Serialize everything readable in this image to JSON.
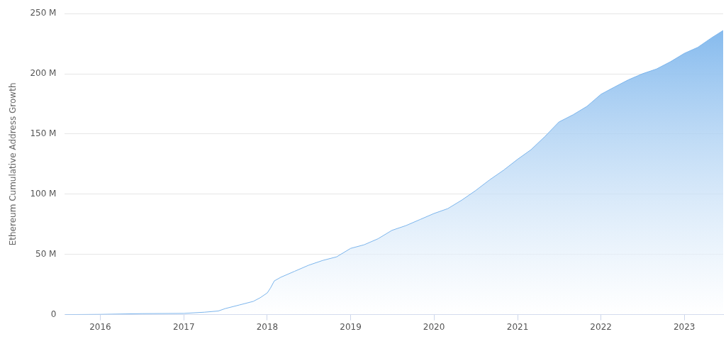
{
  "chart_data": {
    "type": "area",
    "ylabel": "Ethereum Cumulative Address Growth",
    "x": [
      "2015-08",
      "2016-01",
      "2016-07",
      "2017-01",
      "2017-04",
      "2017-06",
      "2017-07",
      "2017-09",
      "2017-11",
      "2017-12",
      "2018-01",
      "2018-01-15",
      "2018-02",
      "2018-03",
      "2018-05",
      "2018-07",
      "2018-09",
      "2018-11",
      "2019-01",
      "2019-03",
      "2019-05",
      "2019-07",
      "2019-09",
      "2019-11",
      "2020-01",
      "2020-03",
      "2020-05",
      "2020-07",
      "2020-09",
      "2020-11",
      "2021-01",
      "2021-03",
      "2021-05",
      "2021-07",
      "2021-09",
      "2021-11",
      "2022-01",
      "2022-03",
      "2022-05",
      "2022-07",
      "2022-09",
      "2022-11",
      "2023-01",
      "2023-03",
      "2023-05",
      "2023-06-20"
    ],
    "series": [
      {
        "color": "#7cb5ec",
        "values": [
          0,
          0.2,
          0.8,
          1,
          2,
          3,
          5,
          8,
          11,
          14,
          18,
          22,
          28,
          31,
          36,
          41,
          45,
          48,
          55,
          58,
          63,
          70,
          74,
          79,
          84,
          88,
          95,
          103,
          112,
          120,
          129,
          137,
          148,
          160,
          166,
          173,
          183,
          189,
          195,
          200,
          204,
          210,
          217,
          222,
          230,
          236
        ]
      }
    ],
    "xlim": [
      "2015-07-30",
      "2023-06-20"
    ],
    "xticks": [
      "2016",
      "2017",
      "2018",
      "2019",
      "2020",
      "2021",
      "2022",
      "2023"
    ],
    "ylim": [
      0,
      250
    ],
    "yticks": [
      0,
      {
        "value": 50,
        "label": "50 M"
      },
      {
        "value": 100,
        "label": "100 M"
      },
      {
        "value": 150,
        "label": "150 M"
      },
      {
        "value": 200,
        "label": "200 M"
      },
      {
        "value": 250,
        "label": "250 M"
      }
    ],
    "grid": "y",
    "legend": false
  }
}
